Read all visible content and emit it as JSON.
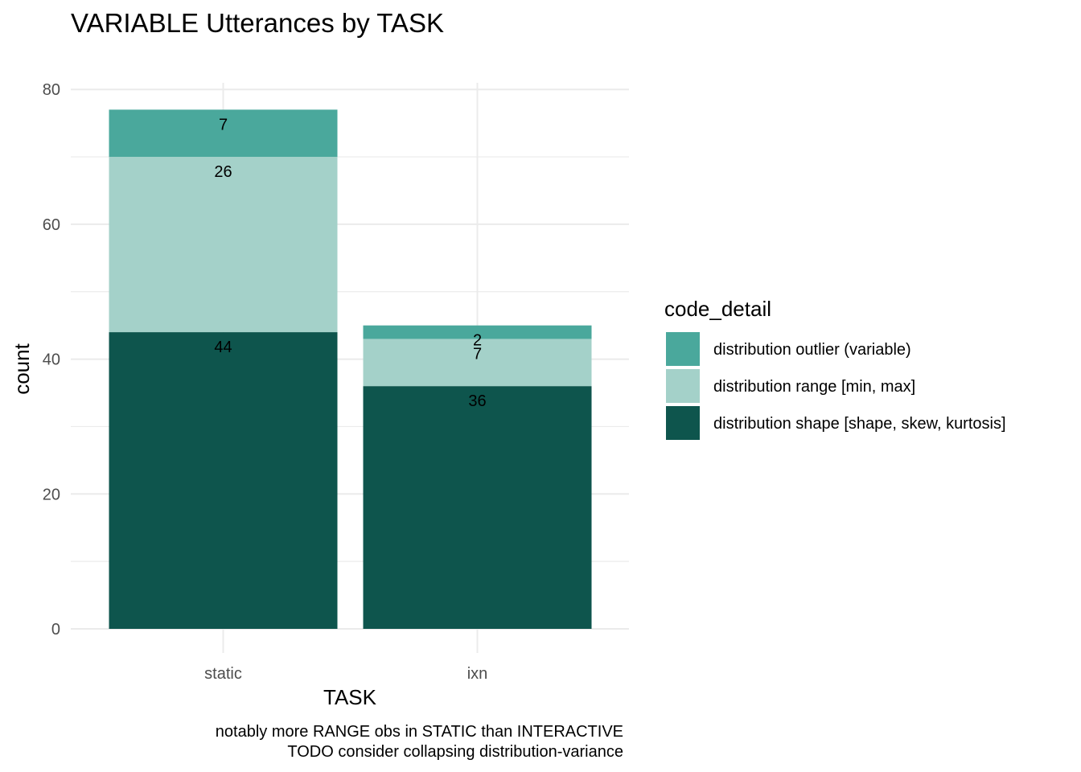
{
  "chart_data": {
    "type": "bar",
    "stacked": true,
    "title": "VARIABLE Utterances by TASK",
    "xlabel": "TASK",
    "ylabel": "count",
    "categories": [
      "static",
      "ixn"
    ],
    "series": [
      {
        "name": "distribution shape [shape, skew, kurtosis]",
        "values": [
          44,
          36
        ],
        "color": "#0e554d"
      },
      {
        "name": "distribution range [min, max]",
        "values": [
          26,
          7
        ],
        "color": "#a4d1c9"
      },
      {
        "name": "distribution outlier (variable)",
        "values": [
          7,
          2
        ],
        "color": "#4aa89c"
      }
    ],
    "ylim": [
      0,
      80
    ],
    "yticks": [
      0,
      20,
      40,
      60,
      80
    ],
    "grid": true,
    "legend": {
      "title": "code_detail",
      "position": "right",
      "order": [
        "distribution outlier (variable)",
        "distribution range [min, max]",
        "distribution shape [shape, skew, kurtosis]"
      ]
    },
    "caption": [
      "notably more RANGE obs in STATIC than INTERACTIVE",
      "TODO consider collapsing distribution-variance"
    ]
  }
}
